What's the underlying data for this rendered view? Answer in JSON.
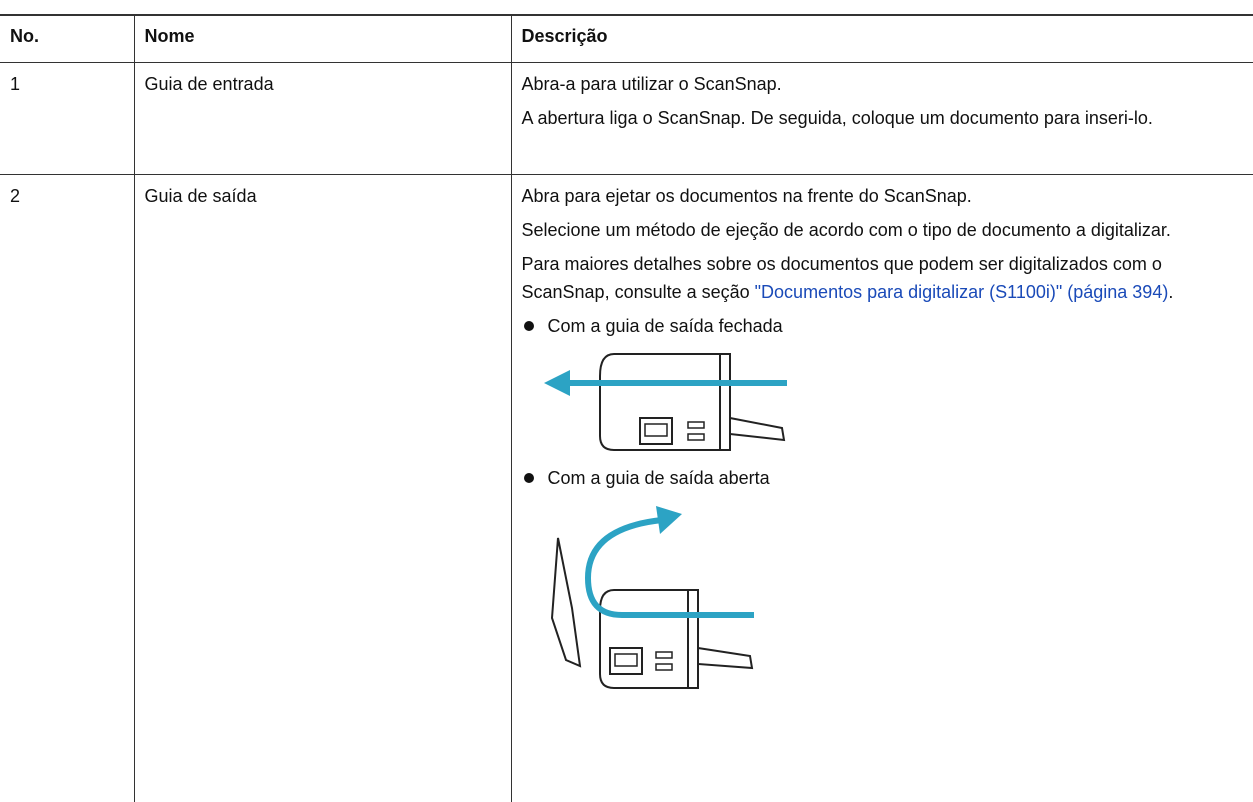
{
  "table": {
    "headers": [
      "No.",
      "Nome",
      "Descrição"
    ],
    "rows": [
      {
        "number": "1",
        "name": "Guia de entrada",
        "description": [
          "Abra-a para utilizar o ScanSnap.",
          "A abertura liga o ScanSnap. De seguida, coloque um documento para inseri-lo."
        ]
      },
      {
        "number": "2",
        "name": "Guia de saída",
        "description": [
          "Abra para ejetar os documentos na frente do ScanSnap.",
          "Selecione um método de ejeção de acordo com o tipo de documento a digitalizar."
        ],
        "detail": {
          "before": "Para maiores detalhes sobre os documentos que podem ser digitalizados com o ScanSnap, consulte a seção ",
          "link": "\"Documentos para digitalizar (S1100i)\" (página 394)",
          "after": "."
        },
        "bullets": [
          "Com a guia de saída fechada",
          "Com a guia de saída aberta"
        ]
      }
    ]
  }
}
